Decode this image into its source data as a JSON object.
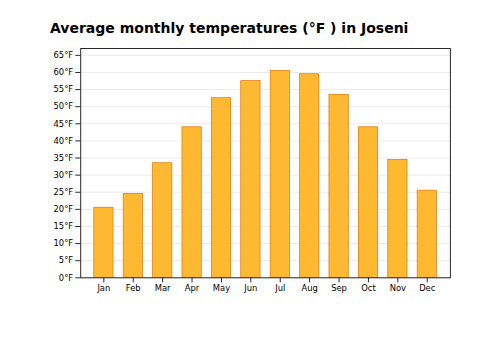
{
  "chart_data": {
    "type": "bar",
    "title": "Average monthly temperatures (°F ) in Joseni",
    "categories": [
      "Jan",
      "Feb",
      "Mar",
      "Apr",
      "May",
      "Jun",
      "Jul",
      "Aug",
      "Sep",
      "Oct",
      "Nov",
      "Dec"
    ],
    "values": [
      20.5,
      24.5,
      33.5,
      44.0,
      52.5,
      57.5,
      60.5,
      59.5,
      53.5,
      44.0,
      34.5,
      25.5
    ],
    "color": "#FDB932",
    "ylim": [
      0,
      67
    ],
    "yticks": [
      {
        "value": 0,
        "label": "0°F"
      },
      {
        "value": 5,
        "label": "5°F"
      },
      {
        "value": 10,
        "label": "10°F"
      },
      {
        "value": 15,
        "label": "15°F"
      },
      {
        "value": 20,
        "label": "20°F"
      },
      {
        "value": 25,
        "label": "25°F"
      },
      {
        "value": 30,
        "label": "30°F"
      },
      {
        "value": 35,
        "label": "35°F"
      },
      {
        "value": 40,
        "label": "40°F"
      },
      {
        "value": 45,
        "label": "45°F"
      },
      {
        "value": 50,
        "label": "50°F"
      },
      {
        "value": 55,
        "label": "55°F"
      },
      {
        "value": 60,
        "label": "60°F"
      },
      {
        "value": 65,
        "label": "65°F"
      }
    ],
    "grid": true
  }
}
